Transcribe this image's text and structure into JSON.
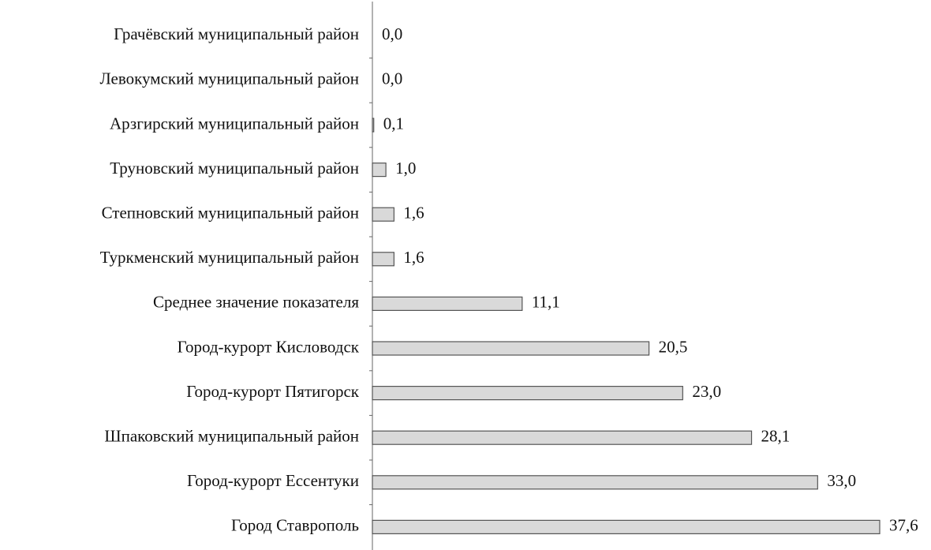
{
  "chart_data": {
    "type": "bar",
    "orientation": "horizontal",
    "color": "#d9d9d9",
    "categories": [
      "Грачёвский муниципальный район",
      "Левокумский муниципальный район",
      "Арзгирский муниципальный район",
      "Труновский муниципальный район",
      "Степновский муниципальный район",
      "Туркменский муниципальный район",
      "Среднее значение показателя",
      "Город-курорт Кисловодск",
      "Город-курорт Пятигорск",
      "Шпаковский муниципальный район",
      "Город-курорт Ессентуки",
      "Город Ставрополь"
    ],
    "values": [
      0.0,
      0.0,
      0.1,
      1.0,
      1.6,
      1.6,
      11.1,
      20.5,
      23.0,
      28.1,
      33.0,
      37.6
    ],
    "value_labels": [
      "0,0",
      "0,0",
      "0,1",
      "1,0",
      "1,6",
      "1,6",
      "11,1",
      "20,5",
      "23,0",
      "28,1",
      "33,0",
      "37,6"
    ]
  }
}
